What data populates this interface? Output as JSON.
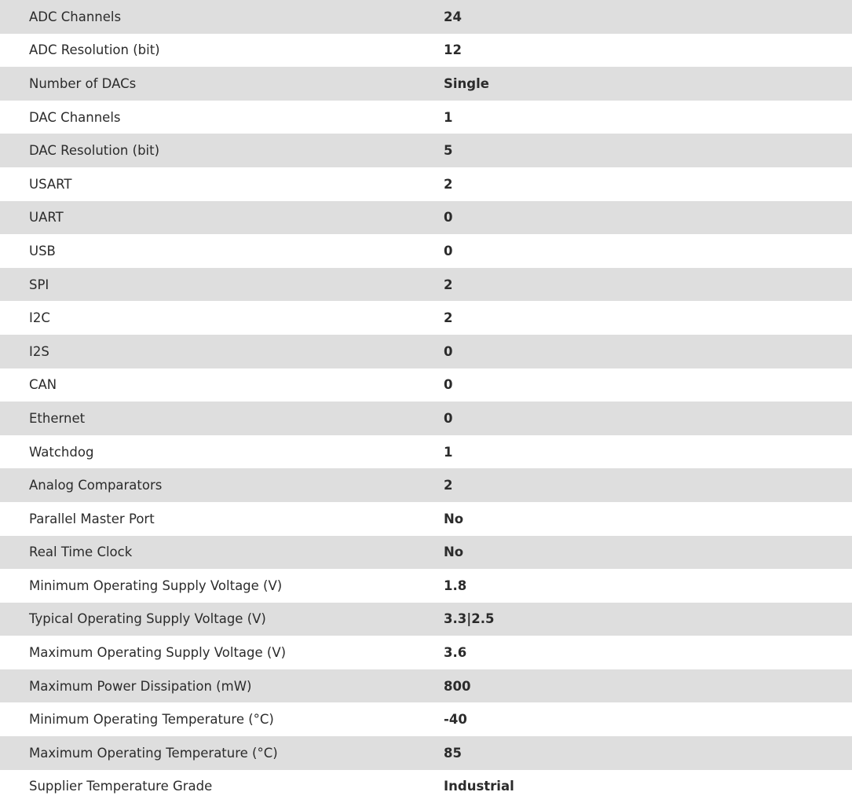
{
  "specs": [
    {
      "label": "ADC Channels",
      "value": "24"
    },
    {
      "label": "ADC Resolution (bit)",
      "value": "12"
    },
    {
      "label": "Number of DACs",
      "value": "Single"
    },
    {
      "label": "DAC Channels",
      "value": "1"
    },
    {
      "label": "DAC Resolution (bit)",
      "value": "5"
    },
    {
      "label": "USART",
      "value": "2"
    },
    {
      "label": "UART",
      "value": "0"
    },
    {
      "label": "USB",
      "value": "0"
    },
    {
      "label": "SPI",
      "value": "2"
    },
    {
      "label": "I2C",
      "value": "2"
    },
    {
      "label": "I2S",
      "value": "0"
    },
    {
      "label": "CAN",
      "value": "0"
    },
    {
      "label": "Ethernet",
      "value": "0"
    },
    {
      "label": "Watchdog",
      "value": "1"
    },
    {
      "label": "Analog Comparators",
      "value": "2"
    },
    {
      "label": "Parallel Master Port",
      "value": "No"
    },
    {
      "label": "Real Time Clock",
      "value": "No"
    },
    {
      "label": "Minimum Operating Supply Voltage (V)",
      "value": "1.8"
    },
    {
      "label": "Typical Operating Supply Voltage (V)",
      "value": "3.3|2.5"
    },
    {
      "label": "Maximum Operating Supply Voltage (V)",
      "value": "3.6"
    },
    {
      "label": "Maximum Power Dissipation (mW)",
      "value": "800"
    },
    {
      "label": "Minimum Operating Temperature (°C)",
      "value": "-40"
    },
    {
      "label": "Maximum Operating Temperature (°C)",
      "value": "85"
    },
    {
      "label": "Supplier Temperature Grade",
      "value": "Industrial"
    }
  ]
}
